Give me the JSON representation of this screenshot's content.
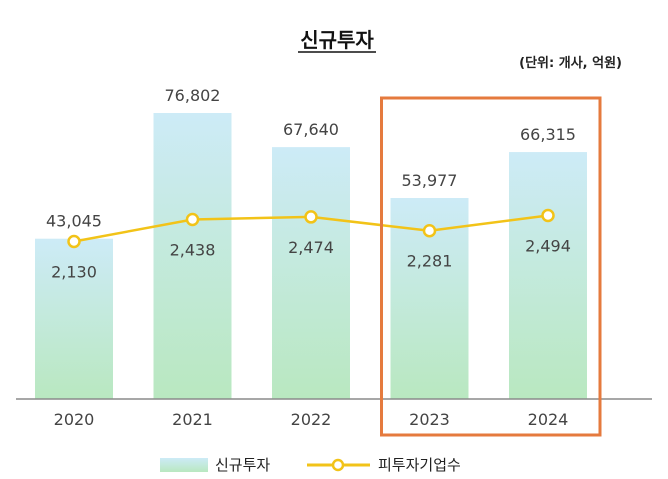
{
  "chart_data": {
    "type": "bar",
    "title": "신규투자",
    "unit_note": "(단위: 개사, 억원)",
    "categories": [
      "2020",
      "2021",
      "2022",
      "2023",
      "2024"
    ],
    "series": [
      {
        "name": "신규투자",
        "type": "bar",
        "values": [
          43045,
          76802,
          67640,
          53977,
          66315
        ],
        "labels": [
          "43,045",
          "76,802",
          "67,640",
          "53,977",
          "66,315"
        ]
      },
      {
        "name": "피투자기업수",
        "type": "line",
        "values": [
          2130,
          2438,
          2474,
          2281,
          2494
        ],
        "labels": [
          "2,130",
          "2,438",
          "2,474",
          "2,281",
          "2,494"
        ]
      }
    ],
    "highlight_categories": [
      "2023",
      "2024"
    ],
    "legend": "bottom",
    "grid": false,
    "colors": {
      "bar_top": "#cdebf7",
      "bar_bottom": "#b9e8c0",
      "line": "#f2c318",
      "highlight_box": "#e57a3e",
      "axis": "#8a8a8a"
    }
  }
}
